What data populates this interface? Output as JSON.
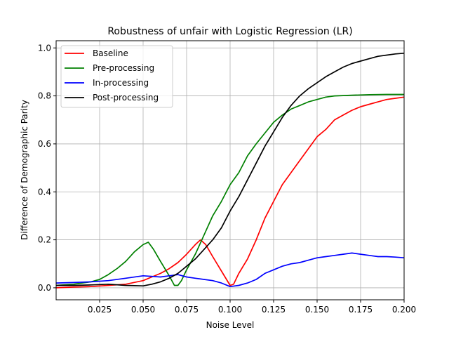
{
  "chart_data": {
    "type": "line",
    "title": "Robustness of unfair with Logistic Regression (LR)",
    "xlabel": "Noise Level",
    "ylabel": "Difference of Demographic Parity",
    "xlim": [
      0.0,
      0.2
    ],
    "ylim": [
      -0.05,
      1.03
    ],
    "xticks": [
      "0.025",
      "0.050",
      "0.075",
      "0.100",
      "0.125",
      "0.150",
      "0.175",
      "0.200"
    ],
    "yticks": [
      "0.0",
      "0.2",
      "0.4",
      "0.6",
      "0.8",
      "1.0"
    ],
    "grid": true,
    "legend_position": "upper left",
    "series": [
      {
        "name": "Baseline",
        "color": "#ff0000",
        "x": [
          0.0,
          0.01,
          0.02,
          0.03,
          0.04,
          0.05,
          0.055,
          0.06,
          0.065,
          0.07,
          0.075,
          0.08,
          0.083,
          0.086,
          0.09,
          0.095,
          0.1,
          0.102,
          0.105,
          0.11,
          0.115,
          0.12,
          0.125,
          0.13,
          0.135,
          0.14,
          0.145,
          0.15,
          0.155,
          0.16,
          0.165,
          0.17,
          0.175,
          0.18,
          0.185,
          0.19,
          0.195,
          0.2
        ],
        "y": [
          0.0,
          0.003,
          0.005,
          0.01,
          0.015,
          0.03,
          0.045,
          0.06,
          0.08,
          0.105,
          0.14,
          0.18,
          0.2,
          0.18,
          0.13,
          0.07,
          0.01,
          0.015,
          0.06,
          0.12,
          0.2,
          0.29,
          0.36,
          0.43,
          0.48,
          0.53,
          0.58,
          0.63,
          0.66,
          0.7,
          0.72,
          0.74,
          0.755,
          0.765,
          0.775,
          0.785,
          0.79,
          0.795
        ]
      },
      {
        "name": "Pre-processing",
        "color": "#008000",
        "x": [
          0.0,
          0.01,
          0.02,
          0.025,
          0.03,
          0.035,
          0.04,
          0.045,
          0.05,
          0.053,
          0.056,
          0.06,
          0.065,
          0.068,
          0.07,
          0.072,
          0.075,
          0.08,
          0.085,
          0.09,
          0.095,
          0.1,
          0.105,
          0.11,
          0.115,
          0.12,
          0.125,
          0.13,
          0.135,
          0.14,
          0.145,
          0.15,
          0.155,
          0.16,
          0.17,
          0.18,
          0.19,
          0.2
        ],
        "y": [
          0.01,
          0.015,
          0.025,
          0.035,
          0.055,
          0.08,
          0.11,
          0.15,
          0.18,
          0.19,
          0.16,
          0.11,
          0.05,
          0.01,
          0.01,
          0.03,
          0.075,
          0.14,
          0.22,
          0.3,
          0.36,
          0.43,
          0.48,
          0.55,
          0.6,
          0.645,
          0.69,
          0.72,
          0.745,
          0.76,
          0.775,
          0.785,
          0.795,
          0.8,
          0.803,
          0.805,
          0.806,
          0.806
        ]
      },
      {
        "name": "In-processing",
        "color": "#0000ff",
        "x": [
          0.0,
          0.01,
          0.02,
          0.03,
          0.04,
          0.05,
          0.06,
          0.065,
          0.07,
          0.075,
          0.08,
          0.085,
          0.09,
          0.095,
          0.1,
          0.105,
          0.11,
          0.115,
          0.12,
          0.125,
          0.13,
          0.135,
          0.14,
          0.145,
          0.15,
          0.155,
          0.16,
          0.165,
          0.17,
          0.175,
          0.18,
          0.185,
          0.19,
          0.195,
          0.2
        ],
        "y": [
          0.02,
          0.022,
          0.025,
          0.03,
          0.04,
          0.05,
          0.045,
          0.05,
          0.055,
          0.045,
          0.04,
          0.035,
          0.03,
          0.02,
          0.005,
          0.01,
          0.02,
          0.035,
          0.06,
          0.075,
          0.09,
          0.1,
          0.105,
          0.115,
          0.125,
          0.13,
          0.135,
          0.14,
          0.145,
          0.14,
          0.135,
          0.13,
          0.13,
          0.128,
          0.125
        ]
      },
      {
        "name": "Post-processing",
        "color": "#000000",
        "x": [
          0.0,
          0.01,
          0.02,
          0.03,
          0.04,
          0.05,
          0.055,
          0.06,
          0.065,
          0.07,
          0.075,
          0.08,
          0.085,
          0.09,
          0.095,
          0.1,
          0.105,
          0.11,
          0.115,
          0.12,
          0.125,
          0.13,
          0.135,
          0.14,
          0.145,
          0.15,
          0.155,
          0.16,
          0.165,
          0.17,
          0.175,
          0.18,
          0.185,
          0.19,
          0.195,
          0.2
        ],
        "y": [
          0.01,
          0.01,
          0.012,
          0.015,
          0.01,
          0.008,
          0.015,
          0.025,
          0.04,
          0.06,
          0.09,
          0.12,
          0.16,
          0.2,
          0.25,
          0.32,
          0.38,
          0.45,
          0.52,
          0.59,
          0.65,
          0.71,
          0.76,
          0.8,
          0.83,
          0.855,
          0.88,
          0.9,
          0.92,
          0.935,
          0.945,
          0.955,
          0.965,
          0.97,
          0.975,
          0.978
        ]
      }
    ]
  }
}
